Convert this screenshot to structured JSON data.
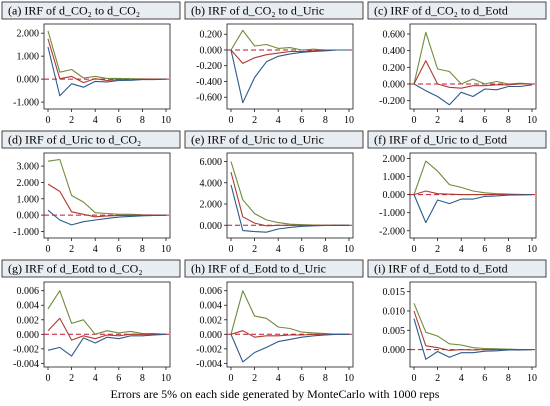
{
  "caption": "Errors are 5% on each side generated by MonteCarlo with 1000 reps",
  "colors": {
    "upper": "#6e8b3d",
    "irf": "#b03a2e",
    "lower": "#2d5a8e",
    "zero": "#c8102e",
    "frame": "#1a1a1a",
    "titlebar": "#e8edf2"
  },
  "chart_data": [
    {
      "type": "line",
      "title": "(a) IRF of d_CO₂ to d_CO₂",
      "x": [
        0,
        1,
        2,
        3,
        4,
        5,
        6,
        7,
        8,
        9,
        10
      ],
      "ylim": [
        -1.3,
        2.4
      ],
      "yticks": [
        -1,
        0,
        1,
        2
      ],
      "yticklabels": [
        "-1.000",
        "0.000",
        "1.000",
        "2.000"
      ],
      "xticks": [
        0,
        2,
        4,
        6,
        8,
        10
      ],
      "series": [
        {
          "values": [
            2.1,
            0.3,
            0.42,
            0.05,
            0.12,
            0.03,
            0.03,
            0.02,
            0.01,
            0.0,
            0.0
          ]
        },
        {
          "values": [
            1.75,
            0.02,
            0.12,
            -0.15,
            0.02,
            -0.06,
            -0.02,
            -0.03,
            0.0,
            0.0,
            0.0
          ]
        },
        {
          "values": [
            1.4,
            -0.72,
            -0.2,
            -0.35,
            -0.1,
            -0.12,
            -0.06,
            -0.05,
            -0.02,
            -0.02,
            0.0
          ]
        }
      ]
    },
    {
      "type": "line",
      "title": "(b) IRF of d_CO₂ to d_Uric",
      "x": [
        0,
        1,
        2,
        3,
        4,
        5,
        6,
        7,
        8,
        9,
        10
      ],
      "ylim": [
        -0.75,
        0.33
      ],
      "yticks": [
        -0.6,
        -0.4,
        -0.2,
        0.0,
        0.2
      ],
      "yticklabels": [
        "-0.600",
        "-0.400",
        "-0.200",
        "0.000",
        "0.200"
      ],
      "xticks": [
        0,
        2,
        4,
        6,
        8,
        10
      ],
      "series": [
        {
          "values": [
            0.0,
            0.25,
            0.05,
            0.07,
            0.02,
            0.03,
            0.0,
            0.01,
            0.0,
            0.0,
            0.0
          ]
        },
        {
          "values": [
            0.0,
            -0.17,
            -0.1,
            -0.06,
            -0.04,
            -0.02,
            -0.02,
            -0.01,
            0.0,
            0.0,
            0.0
          ]
        },
        {
          "values": [
            0.0,
            -0.67,
            -0.35,
            -0.15,
            -0.08,
            -0.05,
            -0.03,
            -0.02,
            -0.01,
            0.0,
            0.0
          ]
        }
      ]
    },
    {
      "type": "line",
      "title": "(c) IRF of d_CO₂ to d_Eotd",
      "x": [
        0,
        1,
        2,
        3,
        4,
        5,
        6,
        7,
        8,
        9,
        10
      ],
      "ylim": [
        -0.3,
        0.72
      ],
      "yticks": [
        -0.2,
        0.0,
        0.2,
        0.4,
        0.6
      ],
      "yticklabels": [
        "-0.200",
        "0.000",
        "0.200",
        "0.400",
        "0.600"
      ],
      "xticks": [
        0,
        2,
        4,
        6,
        8,
        10
      ],
      "series": [
        {
          "values": [
            0.0,
            0.62,
            0.18,
            0.15,
            0.0,
            0.06,
            0.0,
            0.03,
            0.0,
            0.01,
            0.0
          ]
        },
        {
          "values": [
            0.0,
            0.28,
            0.0,
            -0.04,
            -0.05,
            -0.02,
            -0.02,
            -0.01,
            -0.01,
            0.0,
            0.0
          ]
        },
        {
          "values": [
            0.0,
            -0.08,
            -0.15,
            -0.25,
            -0.1,
            -0.15,
            -0.06,
            -0.07,
            -0.03,
            -0.03,
            -0.01
          ]
        }
      ]
    },
    {
      "type": "line",
      "title": "(d) IRF of d_Uric to d_CO₂",
      "x": [
        0,
        1,
        2,
        3,
        4,
        5,
        6,
        7,
        8,
        9,
        10
      ],
      "ylim": [
        -1.4,
        3.8
      ],
      "yticks": [
        -1,
        0,
        1,
        2,
        3
      ],
      "yticklabels": [
        "-1.000",
        "0.000",
        "1.000",
        "2.000",
        "3.000"
      ],
      "xticks": [
        0,
        2,
        4,
        6,
        8,
        10
      ],
      "series": [
        {
          "values": [
            3.3,
            3.4,
            1.2,
            0.8,
            0.15,
            0.1,
            0.05,
            0.05,
            0.02,
            0.01,
            0.0
          ]
        },
        {
          "values": [
            1.9,
            1.45,
            0.2,
            0.05,
            -0.1,
            -0.05,
            -0.02,
            -0.02,
            0.0,
            0.0,
            0.0
          ]
        },
        {
          "values": [
            0.3,
            -0.3,
            -0.6,
            -0.4,
            -0.3,
            -0.2,
            -0.12,
            -0.08,
            -0.04,
            -0.02,
            -0.01
          ]
        }
      ]
    },
    {
      "type": "line",
      "title": "(e) IRF of d_Uric to d_Uric",
      "x": [
        0,
        1,
        2,
        3,
        4,
        5,
        6,
        7,
        8,
        9,
        10
      ],
      "ylim": [
        -1.2,
        6.8
      ],
      "yticks": [
        0,
        2,
        4,
        6
      ],
      "yticklabels": [
        "0.000",
        "2.000",
        "4.000",
        "6.000"
      ],
      "xticks": [
        0,
        2,
        4,
        6,
        8,
        10
      ],
      "series": [
        {
          "values": [
            6.0,
            2.4,
            1.1,
            0.5,
            0.25,
            0.1,
            0.05,
            0.02,
            0.0,
            0.0,
            0.0
          ]
        },
        {
          "values": [
            5.0,
            0.8,
            0.2,
            -0.05,
            0.0,
            0.0,
            0.0,
            0.0,
            0.0,
            0.0,
            0.0
          ]
        },
        {
          "values": [
            3.8,
            -0.5,
            -0.6,
            -0.65,
            -0.35,
            -0.2,
            -0.1,
            -0.05,
            -0.02,
            0.0,
            0.0
          ]
        }
      ]
    },
    {
      "type": "line",
      "title": "(f) IRF of d_Uric to d_Eotd",
      "x": [
        0,
        1,
        2,
        3,
        4,
        5,
        6,
        7,
        8,
        9,
        10
      ],
      "ylim": [
        -2.4,
        2.3
      ],
      "yticks": [
        -2,
        -1,
        0,
        1,
        2
      ],
      "yticklabels": [
        "-2.000",
        "-1.000",
        "0.000",
        "1.000",
        "2.000"
      ],
      "xticks": [
        0,
        2,
        4,
        6,
        8,
        10
      ],
      "series": [
        {
          "values": [
            0.0,
            1.85,
            1.3,
            0.55,
            0.4,
            0.2,
            0.1,
            0.05,
            0.03,
            0.01,
            0.0
          ]
        },
        {
          "values": [
            0.0,
            0.2,
            0.05,
            0.02,
            0.0,
            0.0,
            0.0,
            0.0,
            0.0,
            0.0,
            0.0
          ]
        },
        {
          "values": [
            0.0,
            -1.55,
            -0.3,
            -0.5,
            -0.25,
            -0.25,
            -0.1,
            -0.08,
            -0.03,
            -0.02,
            0.0
          ]
        }
      ]
    },
    {
      "type": "line",
      "title": "(g) IRF of d_Eotd to d_CO₂",
      "x": [
        0,
        1,
        2,
        3,
        4,
        5,
        6,
        7,
        8,
        9,
        10
      ],
      "ylim": [
        -0.0045,
        0.0072
      ],
      "yticks": [
        -0.004,
        -0.002,
        0.0,
        0.002,
        0.004,
        0.006
      ],
      "yticklabels": [
        "-0.004",
        "-0.002",
        "0.000",
        "0.002",
        "0.004",
        "0.006"
      ],
      "xticks": [
        0,
        2,
        4,
        6,
        8,
        10
      ],
      "series": [
        {
          "values": [
            0.0035,
            0.006,
            0.0015,
            0.002,
            0.0,
            0.0005,
            0.0002,
            0.0004,
            0.0001,
            0.0001,
            0.0
          ]
        },
        {
          "values": [
            0.0005,
            0.0022,
            -0.0008,
            -0.0002,
            -0.0006,
            -0.0001,
            -0.0002,
            0.0,
            0.0,
            0.0,
            0.0
          ]
        },
        {
          "values": [
            -0.0022,
            -0.0018,
            -0.003,
            -0.0005,
            -0.0012,
            -0.0004,
            -0.0006,
            -0.0002,
            -0.0002,
            -0.0001,
            0.0
          ]
        }
      ]
    },
    {
      "type": "line",
      "title": "(h) IRF of d_Eotd to d_Uric",
      "x": [
        0,
        1,
        2,
        3,
        4,
        5,
        6,
        7,
        8,
        9,
        10
      ],
      "ylim": [
        -0.0045,
        0.0072
      ],
      "yticks": [
        -0.004,
        -0.002,
        0.0,
        0.002,
        0.004,
        0.006
      ],
      "yticklabels": [
        "-0.004",
        "-0.002",
        "0.000",
        "0.002",
        "0.004",
        "0.006"
      ],
      "xticks": [
        0,
        2,
        4,
        6,
        8,
        10
      ],
      "series": [
        {
          "values": [
            0.0,
            0.006,
            0.0025,
            0.0022,
            0.001,
            0.0008,
            0.0003,
            0.0002,
            0.0001,
            0.0,
            0.0
          ]
        },
        {
          "values": [
            0.0,
            0.0005,
            -0.0004,
            -0.0002,
            -0.0002,
            -0.0001,
            -0.0001,
            0.0,
            0.0,
            0.0,
            0.0
          ]
        },
        {
          "values": [
            0.0,
            -0.0038,
            -0.0025,
            -0.0018,
            -0.001,
            -0.0007,
            -0.0004,
            -0.0002,
            -0.0001,
            0.0,
            0.0
          ]
        }
      ]
    },
    {
      "type": "line",
      "title": "(i) IRF of d_Eotd to d_Eotd",
      "x": [
        0,
        1,
        2,
        3,
        4,
        5,
        6,
        7,
        8,
        9,
        10
      ],
      "ylim": [
        -0.0045,
        0.0175
      ],
      "yticks": [
        0.0,
        0.005,
        0.01,
        0.015
      ],
      "yticklabels": [
        "0.000",
        "0.005",
        "0.010",
        "0.015"
      ],
      "xticks": [
        0,
        2,
        4,
        6,
        8,
        10
      ],
      "series": [
        {
          "values": [
            0.012,
            0.0045,
            0.0035,
            0.0015,
            0.0012,
            0.0005,
            0.0003,
            0.0002,
            0.0001,
            0.0,
            0.0
          ]
        },
        {
          "values": [
            0.01,
            0.001,
            0.0005,
            -0.0002,
            0.0,
            -0.0001,
            0.0,
            0.0,
            0.0,
            0.0,
            0.0
          ]
        },
        {
          "values": [
            0.008,
            -0.0025,
            -0.0005,
            -0.002,
            -0.0008,
            -0.0008,
            -0.0004,
            -0.0003,
            -0.0001,
            -0.0001,
            0.0
          ]
        }
      ]
    }
  ]
}
